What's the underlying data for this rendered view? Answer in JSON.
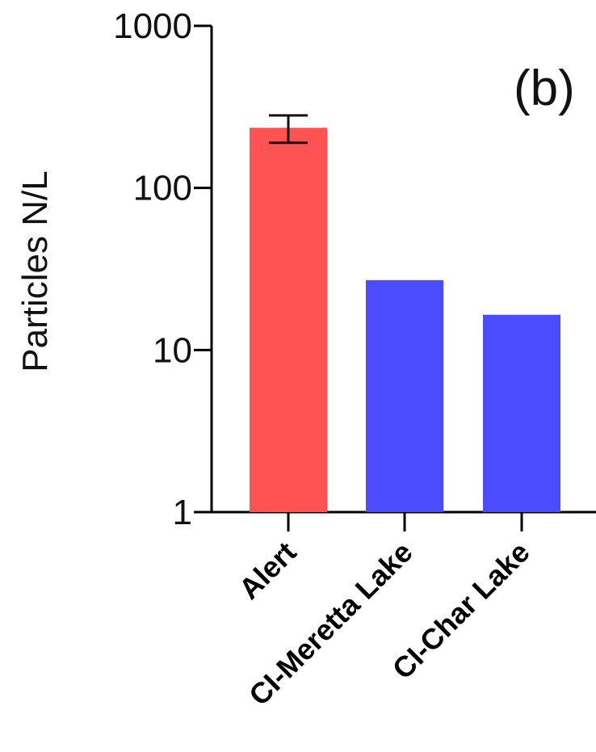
{
  "chart_data": {
    "type": "bar",
    "title": "",
    "panel_label": "(b)",
    "xlabel": "",
    "ylabel": "Particles N/L",
    "yscale": "log",
    "ylim": [
      1,
      1000
    ],
    "yticks": [
      1,
      10,
      100,
      1000
    ],
    "ytick_labels": [
      "1",
      "10",
      "100",
      "1000"
    ],
    "categories": [
      "Alert",
      "CI-Meretta Lake",
      "CI-Char Lake"
    ],
    "values": [
      235,
      27,
      16.5
    ],
    "error_bars": [
      {
        "category": "Alert",
        "low": 190,
        "high": 280
      }
    ],
    "colors": [
      "#ff5252",
      "#4b4bff",
      "#4b4bff"
    ],
    "grid": false,
    "legend": "none"
  }
}
